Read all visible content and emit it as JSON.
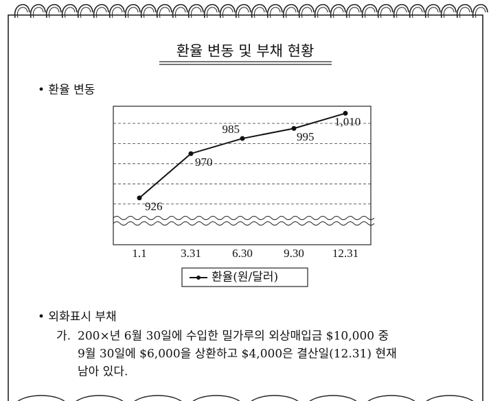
{
  "header": {
    "title": "환율 변동 및 부채 현황"
  },
  "sections": [
    {
      "heading": "• 환율 변동",
      "chart_data": {
        "type": "line",
        "categories": [
          "1.1",
          "3.31",
          "6.30",
          "9.30",
          "12.31"
        ],
        "series": [
          {
            "name": "환율(원/달러)",
            "color": "#111111",
            "values": [
              926,
              970,
              985,
              995,
              1010
            ],
            "value_labels": [
              "926",
              "970",
              "985",
              "995",
              "1,010"
            ]
          }
        ],
        "ylim": [
          900,
          1017
        ],
        "yticks": [
          920,
          940,
          960,
          980,
          1000
        ],
        "grid": true,
        "legend": "bottom"
      }
    },
    {
      "heading": "• 외화표시 부채",
      "items": [
        {
          "marker": "가.",
          "lines": [
            "200×년 6월 30일에 수입한 밀가루의 외상매입금 $10,000 중",
            "9월 30일에 $6,000을 상환하고 $4,000은 결산일(12.31) 현재",
            "남아 있다."
          ]
        }
      ]
    }
  ]
}
